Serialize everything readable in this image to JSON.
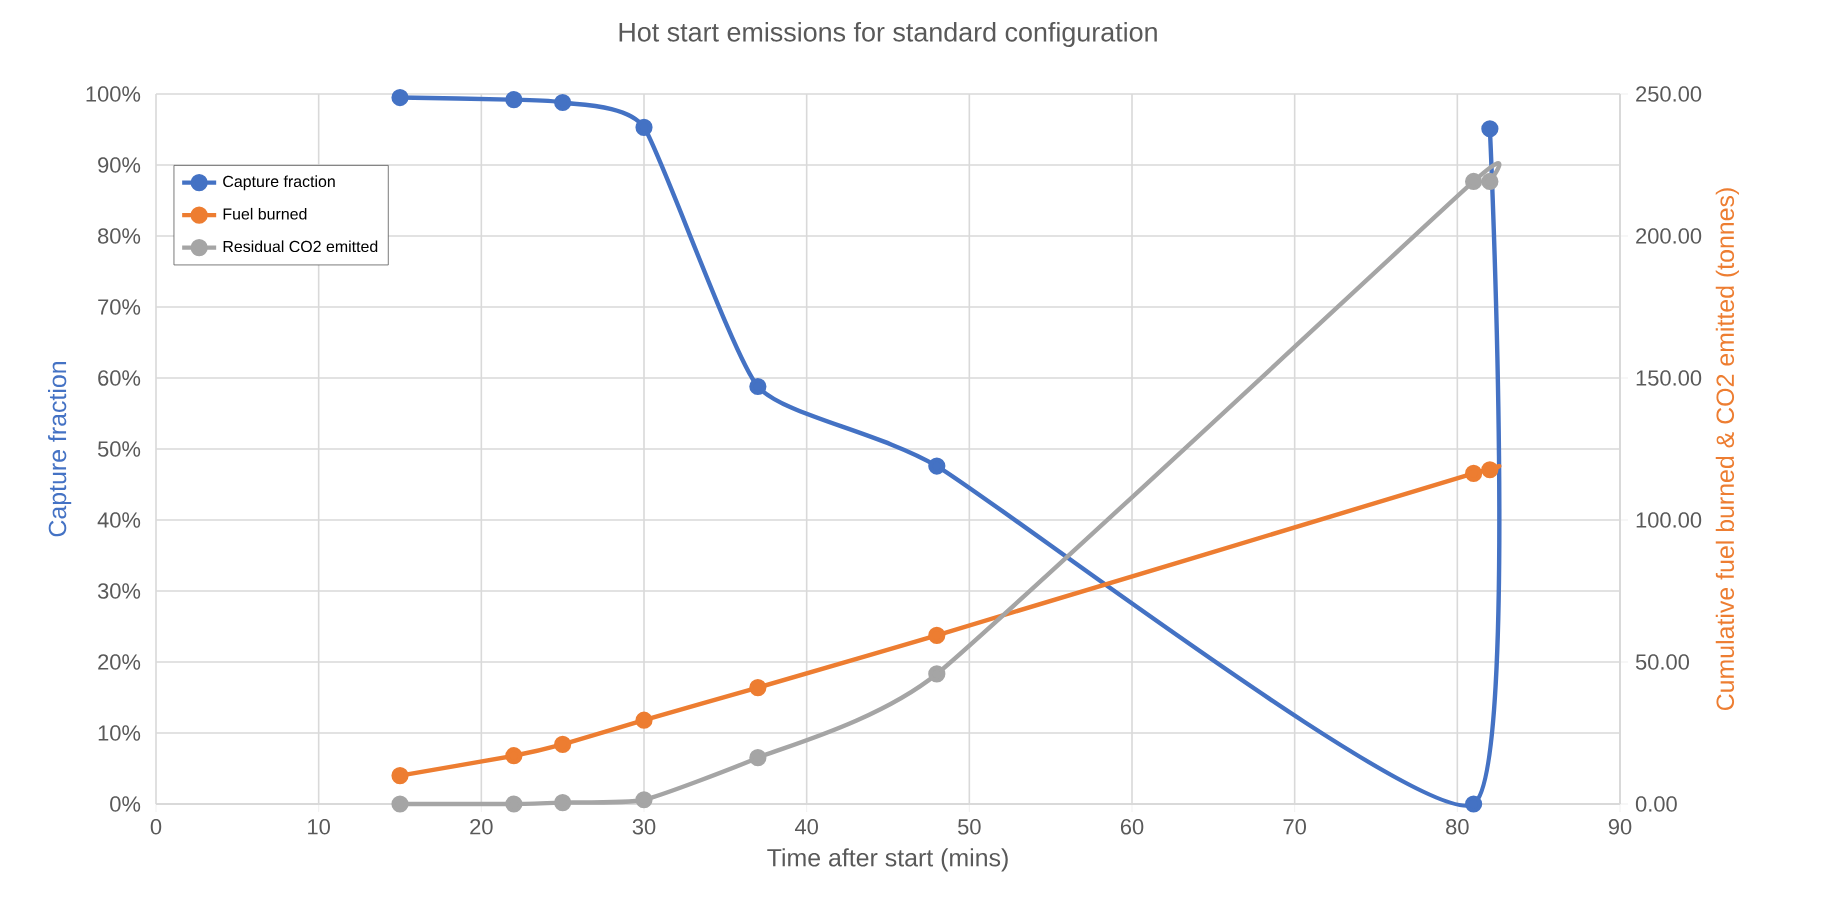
{
  "chart_data": {
    "type": "line",
    "title": "Hot start emissions for standard configuration",
    "xlabel": "Time after start (mins)",
    "ylabel": "Capture fraction",
    "y2label": "Cumulative fuel burned & CO2 emitted (tonnes)",
    "x": [
      15,
      22,
      25,
      30,
      37,
      48,
      81,
      82
    ],
    "series": [
      {
        "name": "Capture fraction",
        "color": "#4472c4",
        "values": [
          99.5,
          99.2,
          98.8,
          95.3,
          58.8,
          47.6,
          0,
          95.1
        ]
      },
      {
        "name": "Fuel burned",
        "color": "#ed7d31",
        "axis": "y2",
        "values": [
          10,
          17,
          21,
          29.5,
          41,
          59.4,
          116.4,
          117.7
        ]
      },
      {
        "name": "Residual CO2 emitted",
        "color": "#a5a5a5",
        "axis": "y2",
        "values": [
          0,
          0,
          0.5,
          1.5,
          16.3,
          45.8,
          219.2,
          219.2
        ]
      }
    ],
    "xlim": [
      0,
      90
    ],
    "xticks": [
      0,
      10,
      20,
      30,
      40,
      50,
      60,
      70,
      80,
      90
    ],
    "ylim": [
      0,
      100
    ],
    "yticks": [
      {
        "value": 0,
        "label": "0%"
      },
      {
        "value": 10,
        "label": "10%"
      },
      {
        "value": 20,
        "label": "20%"
      },
      {
        "value": 30,
        "label": "30%"
      },
      {
        "value": 40,
        "label": "40%"
      },
      {
        "value": 50,
        "label": "50%"
      },
      {
        "value": 60,
        "label": "60%"
      },
      {
        "value": 70,
        "label": "70%"
      },
      {
        "value": 80,
        "label": "80%"
      },
      {
        "value": 90,
        "label": "90%"
      },
      {
        "value": 100,
        "label": "100%"
      }
    ],
    "y2lim": [
      0,
      250
    ],
    "y2ticks": [
      {
        "value": 0,
        "label": "0.00"
      },
      {
        "value": 50,
        "label": "50.00"
      },
      {
        "value": 100,
        "label": "100.00"
      },
      {
        "value": 150,
        "label": "150.00"
      },
      {
        "value": 200,
        "label": "200.00"
      },
      {
        "value": 250,
        "label": "250.00"
      }
    ],
    "grid": true,
    "legend": "top left",
    "marker": "circle",
    "line_style": "solid"
  }
}
